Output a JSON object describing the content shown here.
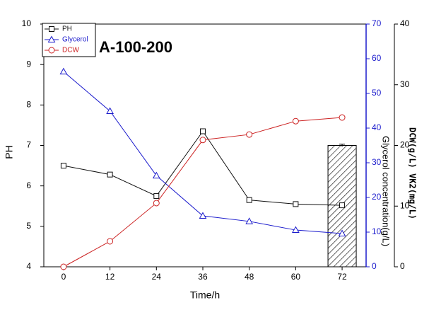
{
  "chart_data": {
    "type": "line",
    "annotation": "A-100-200",
    "x_label": "Time/h",
    "y_label": "PH",
    "y2_label": "Glycerol concentration(g/L)",
    "y3_label": "DCW(g/L)  VK2(mg/L)",
    "x": [
      0,
      12,
      24,
      36,
      48,
      60,
      72
    ],
    "xlim": [
      -5.1,
      78.2
    ],
    "xticks": [
      0,
      12,
      24,
      36,
      48,
      60,
      72
    ],
    "ylim": [
      4,
      10
    ],
    "yticks": [
      4,
      5,
      6,
      7,
      8,
      9,
      10
    ],
    "y2lim": [
      0,
      70
    ],
    "y2ticks": [
      0,
      10,
      20,
      30,
      40,
      50,
      60,
      70
    ],
    "y2color": "#1a1acc",
    "y3lim": [
      0,
      40
    ],
    "y3ticks": [
      0,
      10,
      20,
      30,
      40
    ],
    "series": [
      {
        "name": "PH",
        "color": "#111111",
        "marker": "square",
        "values": [
          6.5,
          6.28,
          5.75,
          7.35,
          5.65,
          5.55,
          5.52
        ]
      },
      {
        "name": "Glycerol",
        "color": "#1a1acc",
        "marker": "triangle",
        "axis": "y2",
        "values": [
          56.3,
          44.9,
          26.3,
          14.7,
          13.1,
          10.6,
          9.6
        ]
      },
      {
        "name": "DCW",
        "color": "#cc2222",
        "marker": "circle",
        "axis": "y3",
        "values": [
          0,
          4.2,
          10.5,
          20.9,
          21.8,
          24.0,
          24.6
        ]
      }
    ],
    "bars": {
      "axis": "y3",
      "values": [
        null,
        null,
        null,
        null,
        null,
        null,
        20
      ],
      "errors": [
        null,
        null,
        null,
        null,
        null,
        null,
        0.2
      ]
    }
  }
}
